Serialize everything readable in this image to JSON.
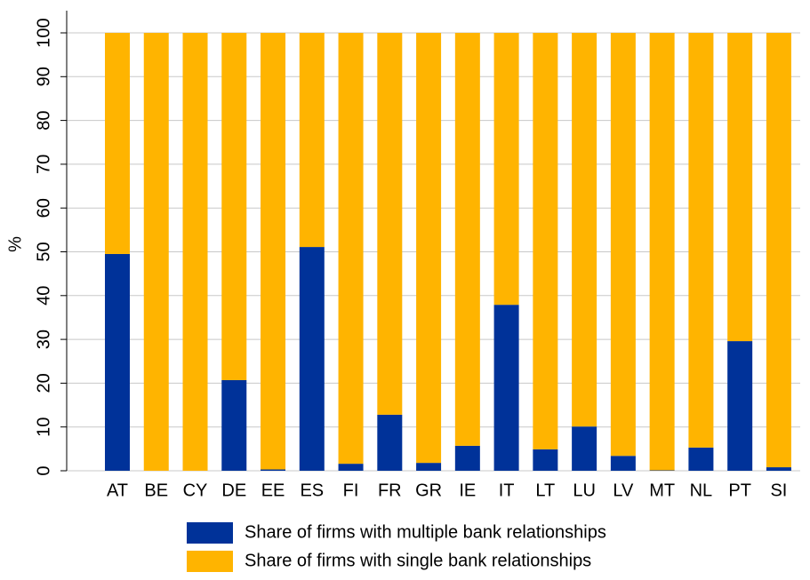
{
  "chart_data": {
    "type": "stacked_bar",
    "ylabel": "%",
    "categories": [
      "AT",
      "BE",
      "CY",
      "DE",
      "EE",
      "ES",
      "FI",
      "FR",
      "GR",
      "IE",
      "IT",
      "LT",
      "LU",
      "LV",
      "MT",
      "NL",
      "PT",
      "SI"
    ],
    "series": [
      {
        "name": "Share of firms with multiple bank relationships",
        "color": "#003299",
        "values": [
          49.5,
          0,
          0,
          20.7,
          0.3,
          51.1,
          1.6,
          12.8,
          1.8,
          5.7,
          37.9,
          4.9,
          10.1,
          3.4,
          0.1,
          5.3,
          29.6,
          0.8
        ]
      },
      {
        "name": "Share of firms with single bank relationships",
        "color": "#ffb400",
        "values": [
          50.5,
          100,
          100,
          79.3,
          99.7,
          48.9,
          98.4,
          87.2,
          98.2,
          94.3,
          62.1,
          95.1,
          89.9,
          96.6,
          99.9,
          94.7,
          70.4,
          99.2
        ]
      }
    ],
    "ylim": [
      0,
      100
    ],
    "yticks": [
      0,
      10,
      20,
      30,
      40,
      50,
      60,
      70,
      80,
      90,
      100
    ],
    "grid": true
  }
}
